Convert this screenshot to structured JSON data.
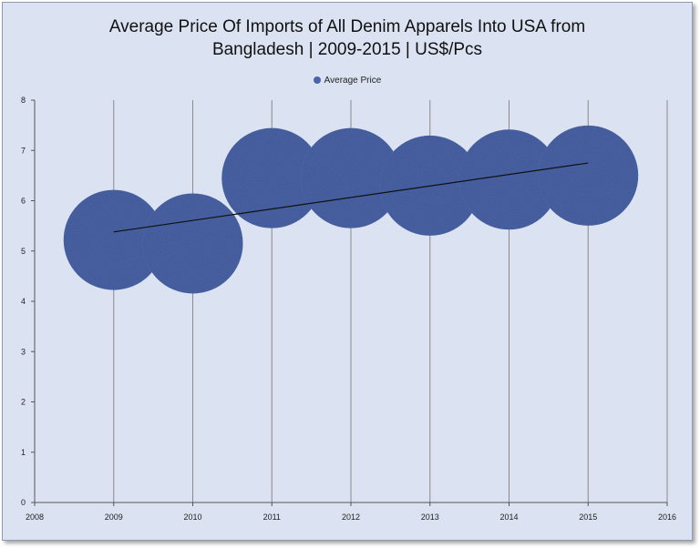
{
  "chart_data": {
    "type": "bubble",
    "title_lines": [
      "Average Price Of Imports of All Denim Apparels Into USA from",
      "Bangladesh | 2009-2015 | US$/Pcs"
    ],
    "legend": [
      "Average Price"
    ],
    "legend_position": "top",
    "xlim": [
      2008,
      2016
    ],
    "ylim": [
      0,
      8
    ],
    "xticks": [
      2008,
      2009,
      2010,
      2011,
      2012,
      2013,
      2014,
      2015,
      2016
    ],
    "yticks": [
      0,
      1,
      2,
      3,
      4,
      5,
      6,
      7,
      8
    ],
    "grid": "vertical",
    "series": [
      {
        "name": "Average Price",
        "x": [
          2009,
          2010,
          2011,
          2012,
          2013,
          2014,
          2015
        ],
        "y": [
          5.22,
          5.15,
          6.45,
          6.45,
          6.3,
          6.42,
          6.5
        ],
        "color": "#4a64a8"
      }
    ],
    "trendline": {
      "x": [
        2009,
        2015
      ],
      "y": [
        5.38,
        6.75
      ],
      "color": "#111111"
    }
  }
}
